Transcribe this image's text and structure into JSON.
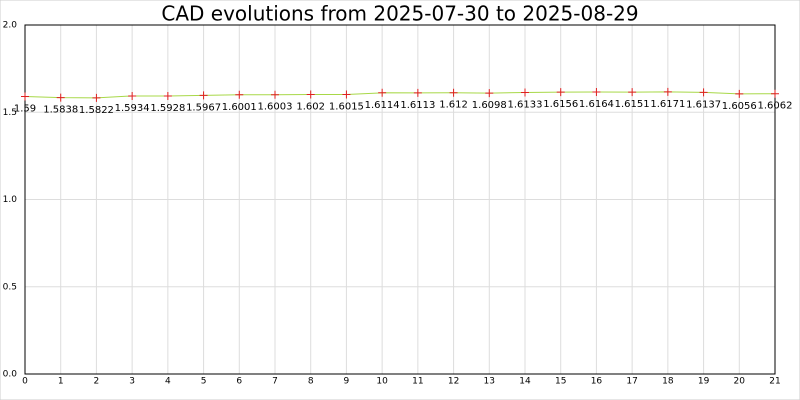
{
  "chart_data": {
    "type": "line",
    "title": "CAD evolutions from 2025-07-30 to 2025-08-29",
    "x": [
      0,
      1,
      2,
      3,
      4,
      5,
      6,
      7,
      8,
      9,
      10,
      11,
      12,
      13,
      14,
      15,
      16,
      17,
      18,
      19,
      20,
      21
    ],
    "series": [
      {
        "color": "#a8d848",
        "marker_color": "#e02020",
        "values": [
          1.59,
          1.5838,
          1.5822,
          1.5934,
          1.5928,
          1.5967,
          1.6001,
          1.6003,
          1.602,
          1.6015,
          1.6114,
          1.6113,
          1.612,
          1.6098,
          1.6133,
          1.6156,
          1.6164,
          1.6151,
          1.6171,
          1.6137,
          1.6056,
          1.6062
        ]
      }
    ],
    "xlim": [
      0,
      21
    ],
    "xticks": [
      0,
      1,
      2,
      3,
      4,
      5,
      6,
      7,
      8,
      9,
      10,
      11,
      12,
      13,
      14,
      15,
      16,
      17,
      18,
      19,
      20,
      21
    ],
    "ylim": [
      0,
      2
    ],
    "yticks": [
      {
        "value": 0,
        "label": "0.0"
      },
      {
        "value": 0.5,
        "label": "0.5"
      },
      {
        "value": 1,
        "label": "1.0"
      },
      {
        "value": 1.5,
        "label": "1.5"
      },
      {
        "value": 2,
        "label": "2.0"
      }
    ],
    "grid": true
  }
}
